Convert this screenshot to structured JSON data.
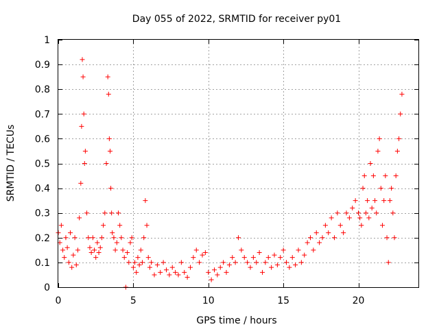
{
  "chart_data": {
    "type": "scatter",
    "title": "Day 055 of 2022, SRMTID for receiver py01",
    "xlabel": "GPS time / hours",
    "ylabel": "SRMTID / TECUs",
    "xlim": [
      0,
      24
    ],
    "ylim": [
      0,
      1
    ],
    "xticks": [
      0,
      5,
      10,
      15,
      20
    ],
    "xtick_labels": [
      "0",
      "5",
      "10",
      "15",
      "20"
    ],
    "yticks": [
      0,
      0.1,
      0.2,
      0.3,
      0.4,
      0.5,
      0.6,
      0.7,
      0.8,
      0.9,
      1
    ],
    "ytick_labels": [
      "0",
      "0.1",
      "0.2",
      "0.3",
      "0.4",
      "0.5",
      "0.6",
      "0.7",
      "0.8",
      "0.9",
      "1"
    ],
    "grid": true,
    "marker": "+",
    "color": "#ff0000",
    "series": [
      {
        "name": "SRMTID",
        "x": [
          0.0,
          0.1,
          0.2,
          0.3,
          0.4,
          0.5,
          0.6,
          0.7,
          0.8,
          0.9,
          1.0,
          1.1,
          1.2,
          1.3,
          1.4,
          1.5,
          1.55,
          1.6,
          1.65,
          1.7,
          1.75,
          1.8,
          1.9,
          2.0,
          2.1,
          2.2,
          2.3,
          2.4,
          2.5,
          2.6,
          2.7,
          2.8,
          2.9,
          3.0,
          3.1,
          3.2,
          3.3,
          3.35,
          3.4,
          3.45,
          3.5,
          3.55,
          3.6,
          3.7,
          3.8,
          3.9,
          4.0,
          4.1,
          4.2,
          4.3,
          4.4,
          4.5,
          4.6,
          4.7,
          4.8,
          4.9,
          5.0,
          5.1,
          5.2,
          5.3,
          5.4,
          5.5,
          5.6,
          5.7,
          5.8,
          5.9,
          6.0,
          6.1,
          6.2,
          6.4,
          6.6,
          6.8,
          7.0,
          7.2,
          7.4,
          7.6,
          7.8,
          8.0,
          8.2,
          8.4,
          8.6,
          8.8,
          9.0,
          9.2,
          9.4,
          9.6,
          9.8,
          10.0,
          10.2,
          10.4,
          10.6,
          10.8,
          11.0,
          11.2,
          11.4,
          11.6,
          11.8,
          12.0,
          12.2,
          12.4,
          12.6,
          12.8,
          13.0,
          13.2,
          13.4,
          13.6,
          13.8,
          14.0,
          14.2,
          14.4,
          14.6,
          14.8,
          15.0,
          15.2,
          15.4,
          15.6,
          15.8,
          16.0,
          16.2,
          16.4,
          16.6,
          16.8,
          17.0,
          17.2,
          17.4,
          17.6,
          17.8,
          18.0,
          18.2,
          18.4,
          18.6,
          18.8,
          19.0,
          19.2,
          19.4,
          19.6,
          19.8,
          20.0,
          20.1,
          20.2,
          20.3,
          20.4,
          20.5,
          20.6,
          20.7,
          20.8,
          20.9,
          21.0,
          21.1,
          21.2,
          21.3,
          21.4,
          21.5,
          21.6,
          21.7,
          21.8,
          21.9,
          22.0,
          22.1,
          22.2,
          22.3,
          22.4,
          22.5,
          22.6,
          22.7,
          22.8,
          22.9
        ],
        "y": [
          0.22,
          0.18,
          0.25,
          0.15,
          0.12,
          0.2,
          0.16,
          0.1,
          0.22,
          0.08,
          0.13,
          0.2,
          0.09,
          0.15,
          0.28,
          0.42,
          0.65,
          0.92,
          0.85,
          0.7,
          0.5,
          0.55,
          0.3,
          0.2,
          0.16,
          0.14,
          0.2,
          0.15,
          0.12,
          0.18,
          0.14,
          0.16,
          0.2,
          0.25,
          0.3,
          0.5,
          0.85,
          0.78,
          0.6,
          0.55,
          0.4,
          0.3,
          0.22,
          0.2,
          0.15,
          0.18,
          0.3,
          0.25,
          0.2,
          0.15,
          0.12,
          0.0,
          0.14,
          0.1,
          0.18,
          0.2,
          0.08,
          0.1,
          0.06,
          0.12,
          0.09,
          0.15,
          0.1,
          0.2,
          0.35,
          0.25,
          0.12,
          0.08,
          0.1,
          0.05,
          0.09,
          0.06,
          0.1,
          0.07,
          0.05,
          0.08,
          0.06,
          0.05,
          0.1,
          0.06,
          0.04,
          0.08,
          0.12,
          0.15,
          0.1,
          0.13,
          0.14,
          0.06,
          0.03,
          0.07,
          0.05,
          0.08,
          0.1,
          0.06,
          0.09,
          0.12,
          0.1,
          0.2,
          0.15,
          0.12,
          0.1,
          0.08,
          0.12,
          0.1,
          0.14,
          0.06,
          0.1,
          0.12,
          0.08,
          0.13,
          0.09,
          0.12,
          0.15,
          0.1,
          0.08,
          0.12,
          0.09,
          0.15,
          0.1,
          0.13,
          0.18,
          0.2,
          0.15,
          0.22,
          0.18,
          0.2,
          0.25,
          0.22,
          0.28,
          0.2,
          0.3,
          0.25,
          0.22,
          0.3,
          0.28,
          0.32,
          0.35,
          0.3,
          0.28,
          0.25,
          0.4,
          0.45,
          0.3,
          0.35,
          0.28,
          0.5,
          0.32,
          0.45,
          0.35,
          0.3,
          0.55,
          0.6,
          0.4,
          0.25,
          0.35,
          0.45,
          0.2,
          0.1,
          0.35,
          0.4,
          0.3,
          0.2,
          0.45,
          0.55,
          0.6,
          0.7,
          0.78
        ]
      }
    ]
  }
}
